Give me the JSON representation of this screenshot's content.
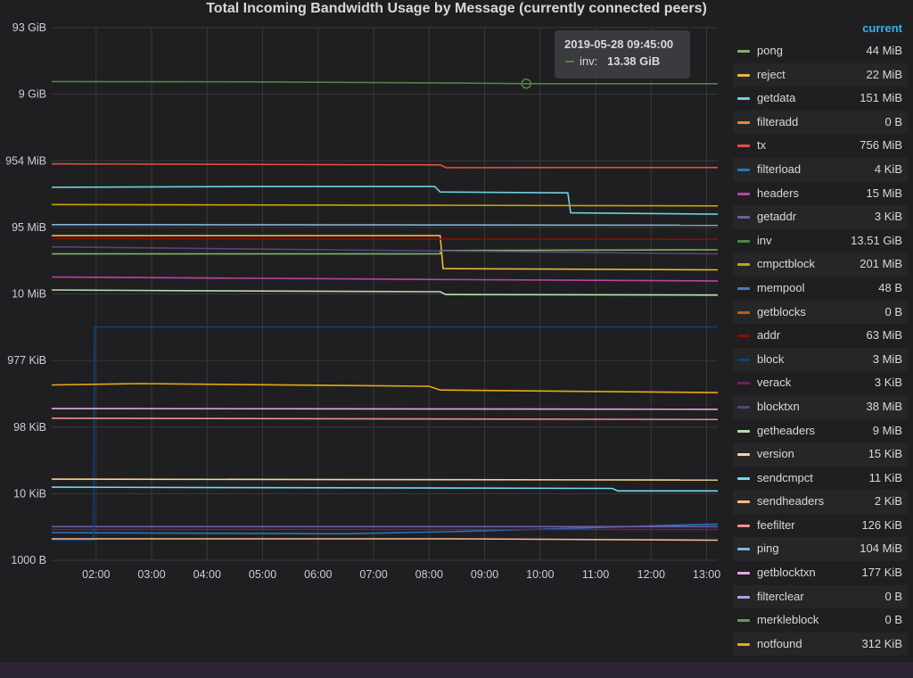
{
  "colors": {
    "background": "#1f1f21",
    "grid": "#3a3a3c",
    "text": "#c7d0d9",
    "legend_header": "#33b5e5",
    "tooltip_bg": "#3a3b3e",
    "footer": "#2d2533"
  },
  "chart_data": {
    "type": "line",
    "title": "Total Incoming Bandwidth Usage by Message (currently connected peers)",
    "y_scale": "log",
    "y_unit": "bytes",
    "ylim": [
      1000,
      100000000000
    ],
    "y_ticks": [
      {
        "value": 100000000000,
        "label": "93 GiB"
      },
      {
        "value": 10000000000,
        "label": "9 GiB"
      },
      {
        "value": 1000000000,
        "label": "954 MiB"
      },
      {
        "value": 100000000,
        "label": "95 MiB"
      },
      {
        "value": 10000000,
        "label": "10 MiB"
      },
      {
        "value": 1000000,
        "label": "977 KiB"
      },
      {
        "value": 100000,
        "label": "98 KiB"
      },
      {
        "value": 10000,
        "label": "10 KiB"
      },
      {
        "value": 1000,
        "label": "1000 B"
      }
    ],
    "x_unit": "hours",
    "xlim": [
      1.2,
      13.2
    ],
    "x_ticks": [
      {
        "value": 2,
        "label": "02:00"
      },
      {
        "value": 3,
        "label": "03:00"
      },
      {
        "value": 4,
        "label": "04:00"
      },
      {
        "value": 5,
        "label": "05:00"
      },
      {
        "value": 6,
        "label": "06:00"
      },
      {
        "value": 7,
        "label": "07:00"
      },
      {
        "value": 8,
        "label": "08:00"
      },
      {
        "value": 9,
        "label": "09:00"
      },
      {
        "value": 10,
        "label": "10:00"
      },
      {
        "value": 11,
        "label": "11:00"
      },
      {
        "value": 12,
        "label": "12:00"
      },
      {
        "value": 13,
        "label": "13:00"
      }
    ],
    "grid": true,
    "legend_placement": "right",
    "legend_header": "current",
    "series": [
      {
        "name": "pong",
        "current": "44 MiB",
        "color": "#7eb26d",
        "points": [
          [
            1.2,
            40000000
          ],
          [
            8.2,
            40000000
          ],
          [
            8.2,
            45000000
          ],
          [
            13.2,
            46000000
          ]
        ]
      },
      {
        "name": "reject",
        "current": "22 MiB",
        "color": "#eab839",
        "points": [
          [
            1.2,
            75000000
          ],
          [
            8.2,
            75000000
          ],
          [
            8.25,
            24000000
          ],
          [
            13.2,
            23000000
          ]
        ]
      },
      {
        "name": "getdata",
        "current": "151 MiB",
        "color": "#6ed0e0",
        "points": [
          [
            1.2,
            400000000
          ],
          [
            5,
            410000000
          ],
          [
            8.1,
            410000000
          ],
          [
            8.2,
            340000000
          ],
          [
            10.5,
            330000000
          ],
          [
            10.55,
            165000000
          ],
          [
            13.2,
            158000000
          ]
        ]
      },
      {
        "name": "filteradd",
        "current": "0 B",
        "color": "#ef843c",
        "points": []
      },
      {
        "name": "tx",
        "current": "756 MiB",
        "color": "#e24d42",
        "points": [
          [
            1.2,
            900000000
          ],
          [
            8.2,
            870000000
          ],
          [
            8.3,
            790000000
          ],
          [
            13.2,
            793000000
          ]
        ]
      },
      {
        "name": "filterload",
        "current": "4 KiB",
        "color": "#1f78c1",
        "points": [
          [
            1.2,
            2600
          ],
          [
            6.5,
            2500
          ],
          [
            8.5,
            2700
          ],
          [
            13.2,
            3500
          ]
        ]
      },
      {
        "name": "headers",
        "current": "15 MiB",
        "color": "#ba43a9",
        "points": [
          [
            1.2,
            18000000
          ],
          [
            8.2,
            16500000
          ],
          [
            13.2,
            15700000
          ]
        ]
      },
      {
        "name": "getaddr",
        "current": "3 KiB",
        "color": "#705da0",
        "points": [
          [
            1.2,
            3200
          ],
          [
            13.2,
            3200
          ]
        ]
      },
      {
        "name": "inv",
        "current": "13.51 GiB",
        "color": "#508642",
        "points": [
          [
            1.2,
            15500000000
          ],
          [
            5,
            15300000000
          ],
          [
            8.5,
            14700000000
          ],
          [
            9.8,
            14400000000
          ],
          [
            13.2,
            14400000000
          ]
        ]
      },
      {
        "name": "cmpctblock",
        "current": "201 MiB",
        "color": "#cca300",
        "points": [
          [
            1.2,
            220000000
          ],
          [
            8.2,
            215000000
          ],
          [
            13.2,
            210000000
          ]
        ]
      },
      {
        "name": "mempool",
        "current": "48 B",
        "color": "#447ebc",
        "points": []
      },
      {
        "name": "getblocks",
        "current": "0 B",
        "color": "#c15c17",
        "points": []
      },
      {
        "name": "addr",
        "current": "63 MiB",
        "color": "#890f02",
        "points": [
          [
            1.2,
            68000000
          ],
          [
            13.2,
            66000000
          ]
        ]
      },
      {
        "name": "block",
        "current": "3 MiB",
        "color": "#0a437c",
        "points": [
          [
            1.2,
            2000
          ],
          [
            1.95,
            2000
          ],
          [
            1.97,
            3200000
          ],
          [
            13.2,
            3200000
          ]
        ]
      },
      {
        "name": "verack",
        "current": "3 KiB",
        "color": "#6d1f62",
        "points": [
          [
            1.2,
            2900
          ],
          [
            13.2,
            2900
          ]
        ]
      },
      {
        "name": "blocktxn",
        "current": "38 MiB",
        "color": "#584477",
        "points": [
          [
            1.2,
            51000000
          ],
          [
            13.2,
            40000000
          ]
        ]
      },
      {
        "name": "getheaders",
        "current": "9 MiB",
        "color": "#b7dbab",
        "points": [
          [
            1.2,
            11500000
          ],
          [
            3.5,
            11200000
          ],
          [
            8.2,
            10800000
          ],
          [
            8.3,
            9800000
          ],
          [
            13.2,
            9600000
          ]
        ]
      },
      {
        "name": "version",
        "current": "15 KiB",
        "color": "#f4d598",
        "points": [
          [
            1.2,
            16500
          ],
          [
            13.2,
            16000
          ]
        ]
      },
      {
        "name": "sendcmpct",
        "current": "11 KiB",
        "color": "#70dbed",
        "points": [
          [
            1.2,
            12500
          ],
          [
            11.3,
            12000
          ],
          [
            11.4,
            11000
          ],
          [
            13.2,
            11000
          ]
        ]
      },
      {
        "name": "sendheaders",
        "current": "2 KiB",
        "color": "#f9ba8f",
        "points": [
          [
            1.2,
            2100
          ],
          [
            8.5,
            2100
          ],
          [
            13.2,
            2000
          ]
        ]
      },
      {
        "name": "feefilter",
        "current": "126 KiB",
        "color": "#f29191",
        "points": [
          [
            1.2,
            136000
          ],
          [
            13.2,
            130000
          ]
        ]
      },
      {
        "name": "ping",
        "current": "104 MiB",
        "color": "#82b5d8",
        "points": [
          [
            1.2,
            110000000
          ],
          [
            13.2,
            108000000
          ]
        ]
      },
      {
        "name": "getblocktxn",
        "current": "177 KiB",
        "color": "#e5a8e2",
        "points": [
          [
            1.2,
            190000
          ],
          [
            13.2,
            185000
          ]
        ]
      },
      {
        "name": "filterclear",
        "current": "0 B",
        "color": "#aea2e0",
        "points": []
      },
      {
        "name": "merkleblock",
        "current": "0 B",
        "color": "#629e51",
        "points": []
      },
      {
        "name": "notfound",
        "current": "312 KiB",
        "color": "#e5ac0e",
        "points": [
          [
            1.2,
            430000
          ],
          [
            2.8,
            450000
          ],
          [
            8,
            410000
          ],
          [
            8.2,
            360000
          ],
          [
            13.2,
            330000
          ]
        ]
      }
    ],
    "hover_marker": {
      "series": "inv",
      "x": 9.75,
      "y": 14400000000
    },
    "tooltip": {
      "time": "2019-05-28 09:45:00",
      "series": "inv:",
      "value": "13.38 GiB",
      "color": "#508642"
    }
  }
}
